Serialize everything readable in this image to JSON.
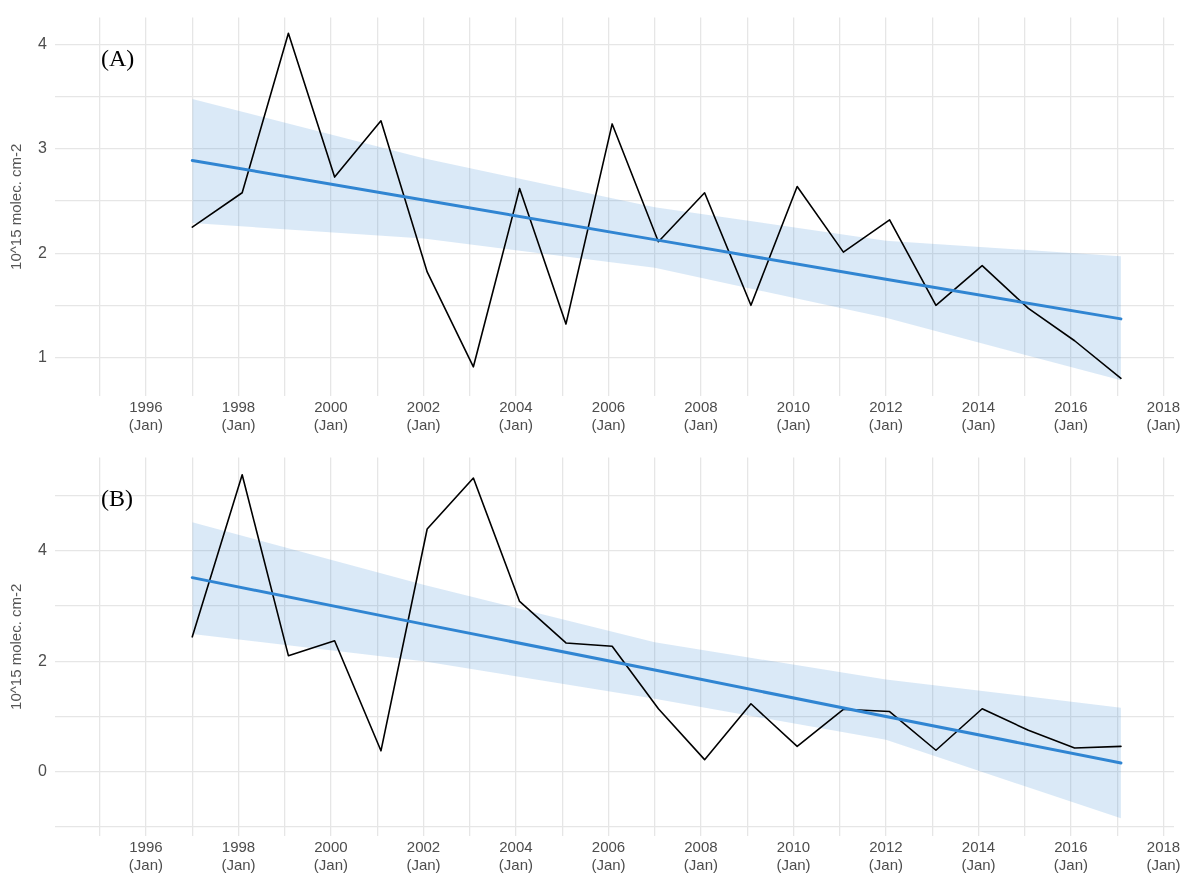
{
  "chart_data": [
    {
      "type": "line",
      "ylabel": "10^15 molec. cm-2",
      "annotations": [
        "(A)"
      ],
      "grid": true,
      "legend": false,
      "marker": "none",
      "x": [
        "1997-01-01",
        "1998-01-30",
        "1999-01-30",
        "2000-01-30",
        "2001-01-30",
        "2002-01-30",
        "2003-01-30",
        "2004-01-30",
        "2005-01-30",
        "2006-01-30",
        "2007-01-30",
        "2008-01-30",
        "2009-01-30",
        "2010-01-30",
        "2011-01-30",
        "2012-01-30",
        "2013-01-30",
        "2014-01-30",
        "2015-01-30",
        "2016-01-30",
        "2017-01-30"
      ],
      "xlim": [
        "1994-01-12",
        "2018-03-25"
      ],
      "xticks": [
        {
          "value": "1995-01-01",
          "label": null
        },
        {
          "value": "1996-01-01",
          "label": "1996\n(Jan)"
        },
        {
          "value": "1997-01-01",
          "label": null
        },
        {
          "value": "1998-01-01",
          "label": "1998\n(Jan)"
        },
        {
          "value": "1999-01-01",
          "label": null
        },
        {
          "value": "2000-01-01",
          "label": "2000\n(Jan)"
        },
        {
          "value": "2001-01-01",
          "label": null
        },
        {
          "value": "2002-01-01",
          "label": "2002\n(Jan)"
        },
        {
          "value": "2003-01-01",
          "label": null
        },
        {
          "value": "2004-01-01",
          "label": "2004\n(Jan)"
        },
        {
          "value": "2005-01-01",
          "label": null
        },
        {
          "value": "2006-01-01",
          "label": "2006\n(Jan)"
        },
        {
          "value": "2007-01-01",
          "label": null
        },
        {
          "value": "2008-01-01",
          "label": "2008\n(Jan)"
        },
        {
          "value": "2009-01-01",
          "label": null
        },
        {
          "value": "2010-01-01",
          "label": "2010\n(Jan)"
        },
        {
          "value": "2011-01-01",
          "label": null
        },
        {
          "value": "2012-01-01",
          "label": "2012\n(Jan)"
        },
        {
          "value": "2013-01-01",
          "label": null
        },
        {
          "value": "2014-01-01",
          "label": "2014\n(Jan)"
        },
        {
          "value": "2015-01-01",
          "label": null
        },
        {
          "value": "2016-01-01",
          "label": "2016\n(Jan)"
        },
        {
          "value": "2017-01-01",
          "label": null
        },
        {
          "value": "2018-01-01",
          "label": "2018\n(Jan)"
        }
      ],
      "ylim": [
        0.63,
        4.26
      ],
      "yticks": [
        1,
        {
          "value": 1.5,
          "label": null
        },
        2,
        {
          "value": 2.5,
          "label": null
        },
        3,
        {
          "value": 3.5,
          "label": null
        },
        4
      ],
      "series": [
        {
          "color": "#000000",
          "values": [
            2.25,
            2.58,
            4.11,
            2.73,
            3.27,
            1.82,
            0.91,
            2.62,
            1.32,
            3.24,
            2.11,
            2.58,
            1.5,
            2.64,
            2.01,
            2.32,
            1.5,
            1.88,
            1.47,
            1.16,
            0.8
          ]
        },
        {
          "type": "line",
          "color": "#3085d2",
          "x": [
            "1997-01-01",
            "2002-01-01",
            "2007-01-01",
            "2012-01-01",
            "2017-01-30"
          ],
          "values": [
            2.89,
            2.51,
            2.13,
            1.75,
            1.37
          ],
          "lower": [
            2.29,
            2.14,
            1.86,
            1.38,
            0.78
          ],
          "upper": [
            3.48,
            2.91,
            2.44,
            2.12,
            1.97
          ]
        }
      ]
    },
    {
      "type": "line",
      "ylabel": "10^15 molec. cm-2",
      "annotations": [
        "(B)"
      ],
      "grid": true,
      "legend": false,
      "marker": "none",
      "x": [
        "1997-01-01",
        "1998-01-30",
        "1999-01-30",
        "2000-01-30",
        "2001-01-30",
        "2002-01-30",
        "2003-01-30",
        "2004-01-30",
        "2005-01-30",
        "2006-01-30",
        "2007-01-30",
        "2008-01-30",
        "2009-01-30",
        "2010-01-30",
        "2011-01-30",
        "2012-01-30",
        "2013-01-30",
        "2014-01-30",
        "2015-01-30",
        "2016-01-30",
        "2017-01-30"
      ],
      "xlim": [
        "1994-01-12",
        "2018-03-25"
      ],
      "xticks": [
        {
          "value": "1995-01-01",
          "label": null
        },
        {
          "value": "1996-01-01",
          "label": "1996\n(Jan)"
        },
        {
          "value": "1997-01-01",
          "label": null
        },
        {
          "value": "1998-01-01",
          "label": "1998\n(Jan)"
        },
        {
          "value": "1999-01-01",
          "label": null
        },
        {
          "value": "2000-01-01",
          "label": "2000\n(Jan)"
        },
        {
          "value": "2001-01-01",
          "label": null
        },
        {
          "value": "2002-01-01",
          "label": "2002\n(Jan)"
        },
        {
          "value": "2003-01-01",
          "label": null
        },
        {
          "value": "2004-01-01",
          "label": "2004\n(Jan)"
        },
        {
          "value": "2005-01-01",
          "label": null
        },
        {
          "value": "2006-01-01",
          "label": "2006\n(Jan)"
        },
        {
          "value": "2007-01-01",
          "label": null
        },
        {
          "value": "2008-01-01",
          "label": "2008\n(Jan)"
        },
        {
          "value": "2009-01-01",
          "label": null
        },
        {
          "value": "2010-01-01",
          "label": "2010\n(Jan)"
        },
        {
          "value": "2011-01-01",
          "label": null
        },
        {
          "value": "2012-01-01",
          "label": "2012\n(Jan)"
        },
        {
          "value": "2013-01-01",
          "label": null
        },
        {
          "value": "2014-01-01",
          "label": "2014\n(Jan)"
        },
        {
          "value": "2015-01-01",
          "label": null
        },
        {
          "value": "2016-01-01",
          "label": "2016\n(Jan)"
        },
        {
          "value": "2017-01-01",
          "label": null
        },
        {
          "value": "2018-01-01",
          "label": "2018\n(Jan)"
        }
      ],
      "ylim": [
        -1.16,
        5.68
      ],
      "yticks": [
        {
          "value": -1,
          "label": null
        },
        0,
        {
          "value": 1,
          "label": null
        },
        2,
        {
          "value": 3,
          "label": null
        },
        4,
        {
          "value": 5,
          "label": null
        }
      ],
      "series": [
        {
          "color": "#000000",
          "values": [
            2.44,
            5.37,
            2.1,
            2.37,
            0.38,
            4.39,
            5.31,
            3.08,
            2.33,
            2.27,
            1.14,
            0.22,
            1.23,
            0.46,
            1.13,
            1.09,
            0.39,
            1.14,
            0.75,
            0.43,
            0.46
          ]
        },
        {
          "type": "line",
          "color": "#3085d2",
          "x": [
            "1997-01-01",
            "2002-01-01",
            "2007-01-01",
            "2012-01-01",
            "2017-01-30"
          ],
          "values": [
            3.51,
            2.67,
            1.84,
            1.0,
            0.16
          ],
          "lower": [
            2.49,
            2.0,
            1.32,
            0.58,
            -0.84
          ],
          "upper": [
            4.51,
            3.38,
            2.34,
            1.67,
            1.16
          ]
        }
      ]
    }
  ]
}
